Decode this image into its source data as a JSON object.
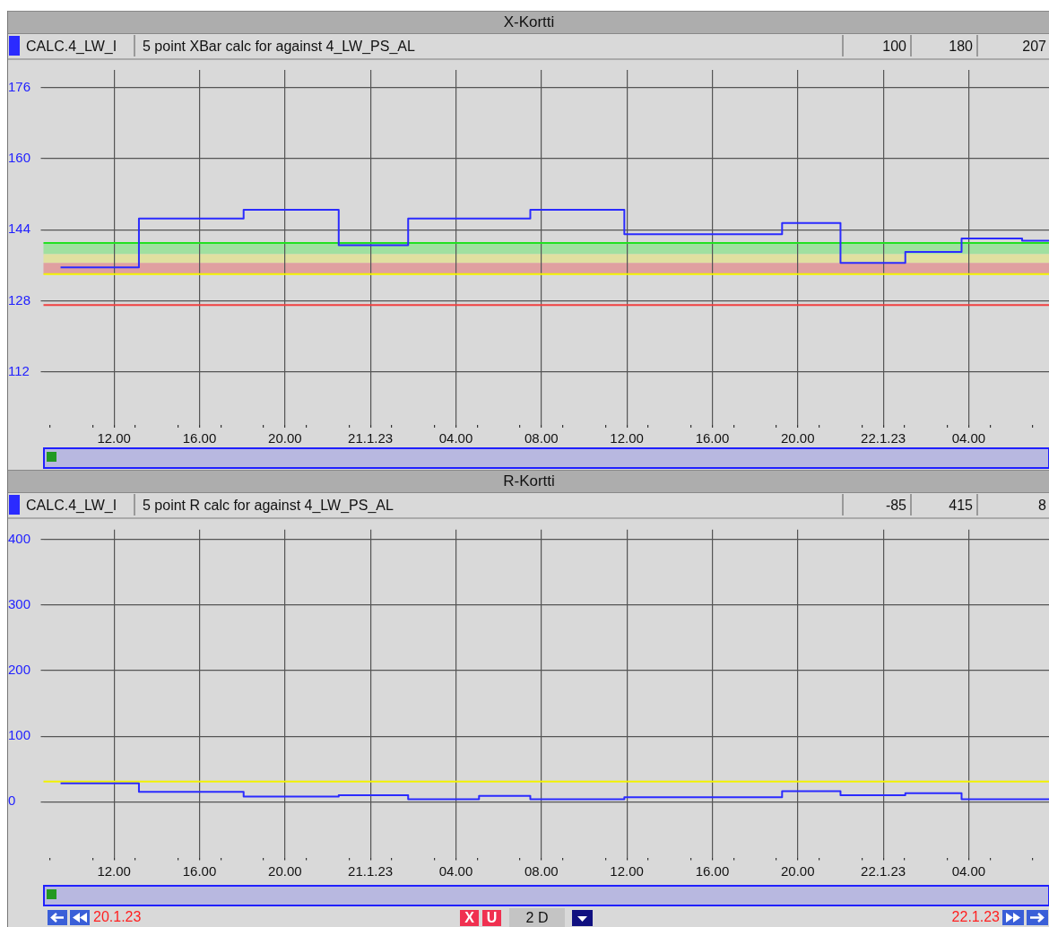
{
  "chart_data": [
    {
      "type": "step",
      "title": "X-Kortti",
      "legend": "top left",
      "grid": true,
      "annotations": [
        "5 point XBar calc for against 4_LW_PS_AL",
        "100",
        "180",
        "207"
      ],
      "x": [
        "--01-20T09:30",
        "--01-20T13:10",
        "--01-20T18:04",
        "--01-20T22:31",
        "--01-21T01:46",
        "--01-21T07:29",
        "--01-21T11:53",
        "--01-21T19:16",
        "--01-21T22:00",
        "--01-22T01:02",
        "--01-22T03:40",
        "--01-22T06:30",
        "--01-22T07:48"
      ],
      "series": [
        {
          "name": "CALC.4_LW_I",
          "color": "#2b2bff",
          "values": [
            135.5,
            146.5,
            148.5,
            140.5,
            146.5,
            148.5,
            143,
            145.5,
            136.5,
            139,
            142,
            141.5,
            141.5
          ]
        }
      ],
      "xlim": [
        "--01-20T08:42",
        "--01-22T07:48"
      ],
      "xticks": [
        {
          "value": "--01-20T09:00",
          "label": null
        },
        {
          "value": "--01-20T11:00",
          "label": null
        },
        {
          "value": "--01-20T12:00",
          "label": "12.00"
        },
        {
          "value": "--01-20T13:00",
          "label": null
        },
        {
          "value": "--01-20T15:00",
          "label": null
        },
        {
          "value": "--01-20T16:00",
          "label": "16.00"
        },
        {
          "value": "--01-20T17:00",
          "label": null
        },
        {
          "value": "--01-20T19:00",
          "label": null
        },
        {
          "value": "--01-20T20:00",
          "label": "20.00"
        },
        {
          "value": "--01-20T21:00",
          "label": null
        },
        {
          "value": "--01-20T23:00",
          "label": null
        },
        {
          "value": "--01-21T00:00",
          "label": "21.1.23"
        },
        {
          "value": "--01-21T01:00",
          "label": null
        },
        {
          "value": "--01-21T03:00",
          "label": null
        },
        {
          "value": "--01-21T04:00",
          "label": "04.00"
        },
        {
          "value": "--01-21T05:00",
          "label": null
        },
        {
          "value": "--01-21T07:00",
          "label": null
        },
        {
          "value": "--01-21T08:00",
          "label": "08.00"
        },
        {
          "value": "--01-21T09:00",
          "label": null
        },
        {
          "value": "--01-21T11:00",
          "label": null
        },
        {
          "value": "--01-21T12:00",
          "label": "12.00"
        },
        {
          "value": "--01-21T13:00",
          "label": null
        },
        {
          "value": "--01-21T15:00",
          "label": null
        },
        {
          "value": "--01-21T16:00",
          "label": "16.00"
        },
        {
          "value": "--01-21T17:00",
          "label": null
        },
        {
          "value": "--01-21T19:00",
          "label": null
        },
        {
          "value": "--01-21T20:00",
          "label": "20.00"
        },
        {
          "value": "--01-21T21:00",
          "label": null
        },
        {
          "value": "--01-21T23:00",
          "label": null
        },
        {
          "value": "--01-22T00:00",
          "label": "22.1.23"
        },
        {
          "value": "--01-22T01:00",
          "label": null
        },
        {
          "value": "--01-22T03:00",
          "label": null
        },
        {
          "value": "--01-22T04:00",
          "label": "04.00"
        },
        {
          "value": "--01-22T05:00",
          "label": null
        },
        {
          "value": "--01-22T07:00",
          "label": null
        }
      ],
      "ylim": [
        100,
        180
      ],
      "yticks": [
        112,
        128,
        144,
        160,
        176
      ],
      "bands": [
        {
          "axis": "y",
          "from": 138.5,
          "to": 141,
          "color": "#a0e0a0"
        },
        {
          "axis": "y",
          "from": 136.5,
          "to": 138.5,
          "color": "#e0e0a0"
        },
        {
          "axis": "y",
          "from": 134,
          "to": 136.5,
          "color": "#e0a0a0"
        }
      ],
      "ref_lines": [
        {
          "axis": "y",
          "value": 141,
          "color": "#22e022"
        },
        {
          "axis": "y",
          "value": 134,
          "color": "#f2f200"
        },
        {
          "axis": "y",
          "value": 127,
          "color": "#f04040"
        }
      ]
    },
    {
      "type": "step",
      "title": "R-Kortti",
      "legend": "top left",
      "grid": true,
      "annotations": [
        "5 point R calc for against 4_LW_PS_AL",
        "-85",
        "415",
        "8",
        "20.1.23",
        "X",
        "U",
        "2 D",
        "22.1.23"
      ],
      "x": [
        "--01-20T09:30",
        "--01-20T13:10",
        "--01-20T18:04",
        "--01-20T22:31",
        "--01-21T01:46",
        "--01-21T05:05",
        "--01-21T07:29",
        "--01-21T11:53",
        "--01-21T19:16",
        "--01-21T22:00",
        "--01-22T01:02",
        "--01-22T03:40",
        "--01-22T07:48"
      ],
      "series": [
        {
          "name": "CALC.4_LW_I",
          "color": "#2b2bff",
          "values": [
            28,
            15,
            8,
            10,
            4,
            9,
            4,
            7,
            16,
            10,
            13,
            4,
            4
          ]
        }
      ],
      "xlim": [
        "--01-20T08:42",
        "--01-22T07:48"
      ],
      "xticks": [
        {
          "value": "--01-20T09:00",
          "label": null
        },
        {
          "value": "--01-20T11:00",
          "label": null
        },
        {
          "value": "--01-20T12:00",
          "label": "12.00"
        },
        {
          "value": "--01-20T13:00",
          "label": null
        },
        {
          "value": "--01-20T15:00",
          "label": null
        },
        {
          "value": "--01-20T16:00",
          "label": "16.00"
        },
        {
          "value": "--01-20T17:00",
          "label": null
        },
        {
          "value": "--01-20T19:00",
          "label": null
        },
        {
          "value": "--01-20T20:00",
          "label": "20.00"
        },
        {
          "value": "--01-20T21:00",
          "label": null
        },
        {
          "value": "--01-20T23:00",
          "label": null
        },
        {
          "value": "--01-21T00:00",
          "label": "21.1.23"
        },
        {
          "value": "--01-21T01:00",
          "label": null
        },
        {
          "value": "--01-21T03:00",
          "label": null
        },
        {
          "value": "--01-21T04:00",
          "label": "04.00"
        },
        {
          "value": "--01-21T05:00",
          "label": null
        },
        {
          "value": "--01-21T07:00",
          "label": null
        },
        {
          "value": "--01-21T08:00",
          "label": "08.00"
        },
        {
          "value": "--01-21T09:00",
          "label": null
        },
        {
          "value": "--01-21T11:00",
          "label": null
        },
        {
          "value": "--01-21T12:00",
          "label": "12.00"
        },
        {
          "value": "--01-21T13:00",
          "label": null
        },
        {
          "value": "--01-21T15:00",
          "label": null
        },
        {
          "value": "--01-21T16:00",
          "label": "16.00"
        },
        {
          "value": "--01-21T17:00",
          "label": null
        },
        {
          "value": "--01-21T19:00",
          "label": null
        },
        {
          "value": "--01-21T20:00",
          "label": "20.00"
        },
        {
          "value": "--01-21T21:00",
          "label": null
        },
        {
          "value": "--01-21T23:00",
          "label": null
        },
        {
          "value": "--01-22T00:00",
          "label": "22.1.23"
        },
        {
          "value": "--01-22T01:00",
          "label": null
        },
        {
          "value": "--01-22T03:00",
          "label": null
        },
        {
          "value": "--01-22T04:00",
          "label": "04.00"
        },
        {
          "value": "--01-22T05:00",
          "label": null
        },
        {
          "value": "--01-22T07:00",
          "label": null
        }
      ],
      "ylim": [
        -85,
        415
      ],
      "yticks": [
        0,
        100,
        200,
        300,
        400
      ],
      "ref_lines": [
        {
          "axis": "y",
          "value": 31,
          "color": "#f2f200"
        }
      ]
    }
  ]
}
